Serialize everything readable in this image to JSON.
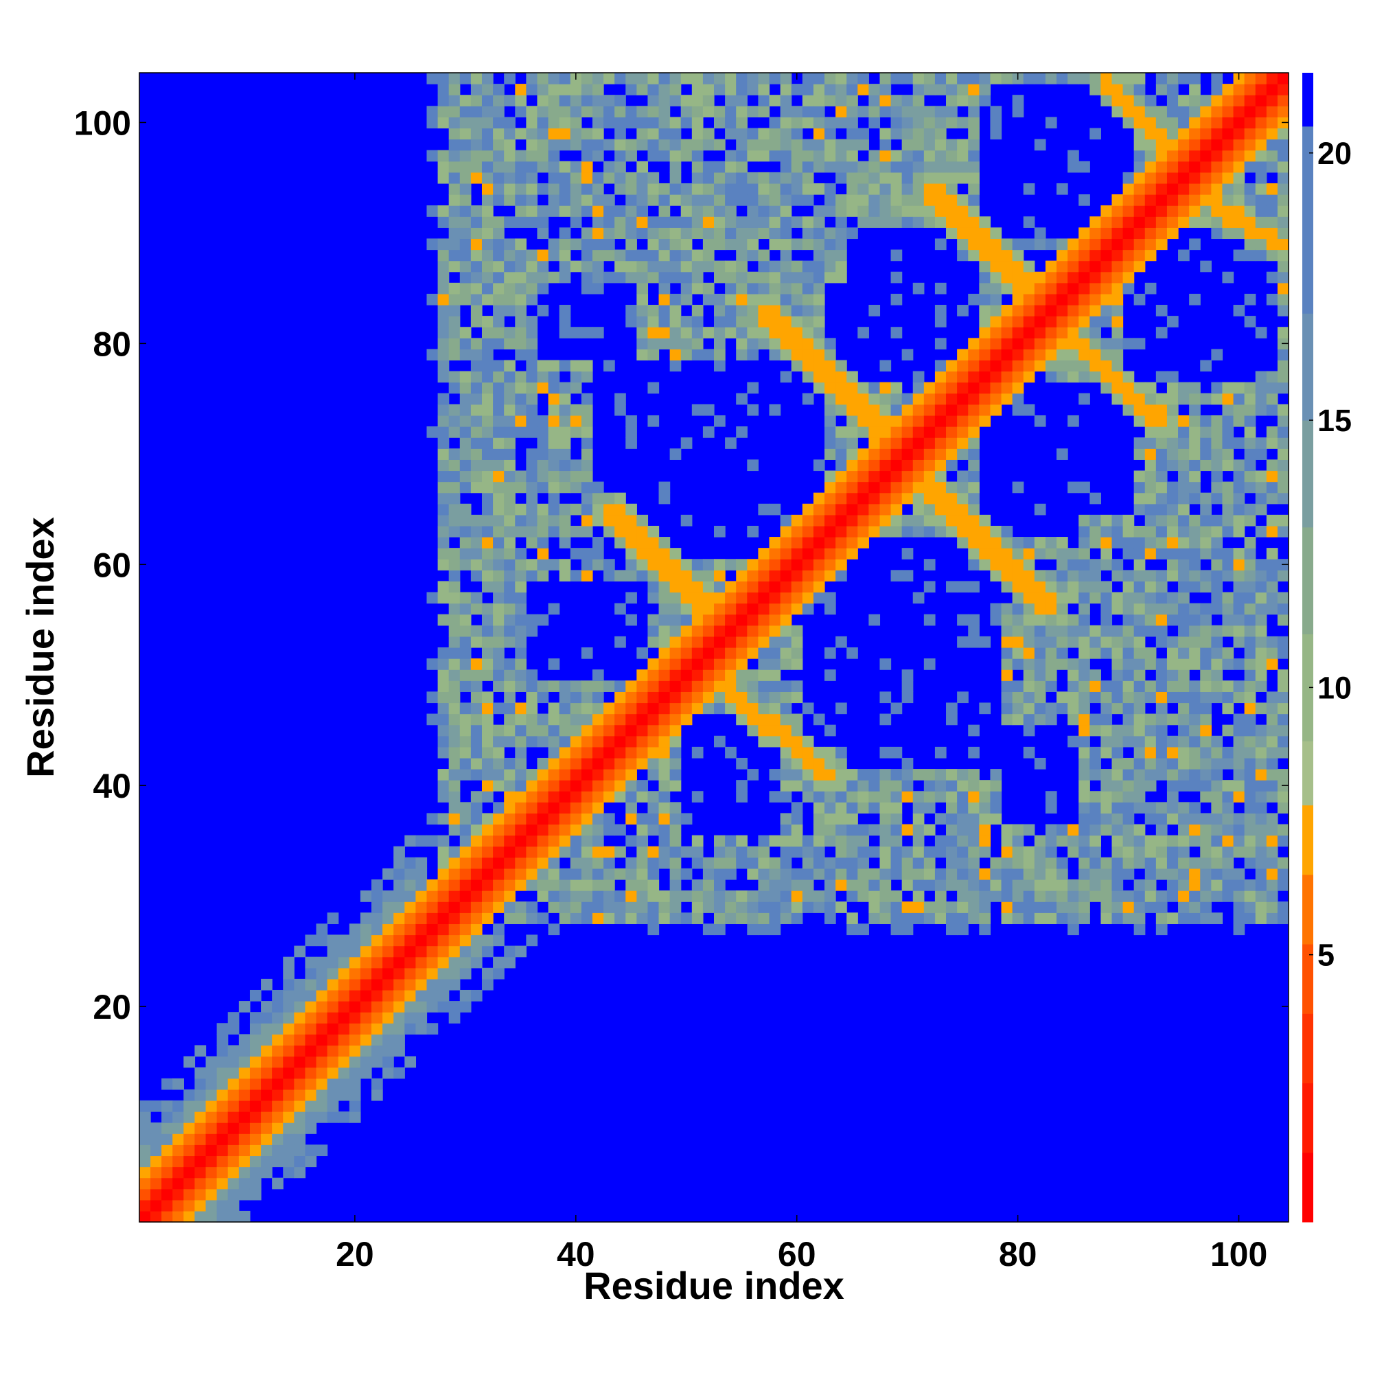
{
  "chart_data": {
    "type": "heatmap",
    "title": "",
    "xlabel": "Residue index",
    "ylabel": "Residue index",
    "xlim": [
      1,
      104
    ],
    "ylim": [
      1,
      104
    ],
    "x_ticks": [
      20,
      40,
      60,
      80,
      100
    ],
    "y_ticks": [
      20,
      40,
      60,
      80,
      100
    ],
    "x_tick_labels": [
      "20",
      "40",
      "60",
      "80",
      "100"
    ],
    "y_tick_labels": [
      "20",
      "40",
      "60",
      "80",
      "100"
    ],
    "grid": false,
    "symmetric": true,
    "n_residues": 104,
    "colorbar": {
      "range": [
        0,
        21.5
      ],
      "ticks": [
        5,
        10,
        15,
        20
      ],
      "tick_labels": [
        "5",
        "10",
        "15",
        "20"
      ],
      "bins": [
        {
          "upper": 1.3,
          "color": "#ff0000"
        },
        {
          "upper": 2.6,
          "color": "#ff1a00"
        },
        {
          "upper": 3.9,
          "color": "#ff3300"
        },
        {
          "upper": 5.2,
          "color": "#ff5100"
        },
        {
          "upper": 6.5,
          "color": "#ff7400"
        },
        {
          "upper": 7.8,
          "color": "#ffa500"
        },
        {
          "upper": 9.0,
          "color": "#a6bf8a"
        },
        {
          "upper": 11.0,
          "color": "#96b686"
        },
        {
          "upper": 13.0,
          "color": "#88aa8c"
        },
        {
          "upper": 15.0,
          "color": "#7a9ea0"
        },
        {
          "upper": 17.0,
          "color": "#6a90b4"
        },
        {
          "upper": 20.5,
          "color": "#5a82c0"
        },
        {
          "upper": 21.5,
          "color": "#0000ff"
        }
      ]
    },
    "background_value": 21.5,
    "background_color": "#0000ff",
    "diagonal_band_distance": [
      {
        "offset": 0,
        "value": 0.5
      },
      {
        "offset": 1,
        "value": 2.5
      },
      {
        "offset": 2,
        "value": 5.0
      },
      {
        "offset": 3,
        "value": 6.2
      },
      {
        "offset": 4,
        "value": 7.0
      }
    ],
    "secondary_structure_contacts": [
      {
        "i": [
          43,
          52
        ],
        "j": [
          65,
          56
        ],
        "value": 6.8
      },
      {
        "i": [
          52,
          63
        ],
        "j": [
          50,
          41
        ],
        "value": 6.8
      },
      {
        "i": [
          57,
          69
        ],
        "j": [
          83,
          71
        ],
        "value": 6.8
      },
      {
        "i": [
          70,
          83
        ],
        "j": [
          69,
          56
        ],
        "value": 6.8
      },
      {
        "i": [
          72,
          82
        ],
        "j": [
          94,
          84
        ],
        "value": 6.8
      },
      {
        "i": [
          84,
          93
        ],
        "j": [
          81,
          73
        ],
        "value": 6.8
      },
      {
        "i": [
          88,
          93
        ],
        "j": [
          104,
          98
        ],
        "value": 6.8
      },
      {
        "i": [
          95,
          104
        ],
        "j": [
          94,
          89
        ],
        "value": 6.8
      }
    ],
    "void_regions": [
      {
        "x": [
          37,
          46
        ],
        "y": [
          50,
          58
        ]
      },
      {
        "x": [
          50,
          58
        ],
        "y": [
          36,
          44
        ]
      },
      {
        "x": [
          43,
          60
        ],
        "y": [
          61,
          74
        ]
      },
      {
        "x": [
          62,
          78
        ],
        "y": [
          42,
          62
        ]
      },
      {
        "x": [
          63,
          76
        ],
        "y": [
          77,
          85
        ]
      },
      {
        "x": [
          78,
          90
        ],
        "y": [
          65,
          76
        ]
      },
      {
        "x": [
          90,
          101
        ],
        "y": [
          77,
          86
        ]
      },
      {
        "x": [
          37,
          45
        ],
        "y": [
          79,
          85
        ]
      },
      {
        "x": [
          78,
          90
        ],
        "y": [
          90,
          103
        ]
      }
    ],
    "interaction_zones": [
      {
        "x": [
          26,
          104
        ],
        "y": [
          28,
          105
        ],
        "fill": "medium"
      },
      {
        "x": [
          1,
          26
        ],
        "y": [
          1,
          26
        ],
        "fill": "band"
      }
    ]
  }
}
